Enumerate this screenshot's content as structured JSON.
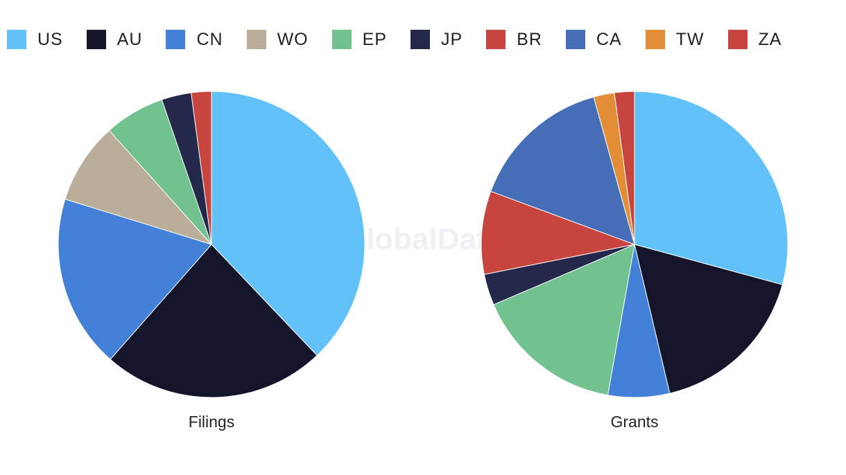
{
  "watermark": "GlobalData",
  "legend": [
    {
      "name": "US",
      "color": "#62C1F9"
    },
    {
      "name": "AU",
      "color": "#14152A"
    },
    {
      "name": "CN",
      "color": "#4380D8"
    },
    {
      "name": "WO",
      "color": "#BAAD9A"
    },
    {
      "name": "EP",
      "color": "#72C290"
    },
    {
      "name": "JP",
      "color": "#24284A"
    },
    {
      "name": "BR",
      "color": "#C8443F"
    },
    {
      "name": "CA",
      "color": "#456EB6"
    },
    {
      "name": "TW",
      "color": "#E38E36"
    },
    {
      "name": "ZA",
      "color": "#C8443F"
    }
  ],
  "chart_data": [
    {
      "type": "pie",
      "title": "Filings",
      "slices": [
        {
          "label": "US",
          "value": 37.5
        },
        {
          "label": "AU",
          "value": 23.3
        },
        {
          "label": "CN",
          "value": 18.1
        },
        {
          "label": "WO",
          "value": 8.5
        },
        {
          "label": "EP",
          "value": 6.3
        },
        {
          "label": "JP",
          "value": 3.1
        },
        {
          "label": "ZA",
          "value": 2.1
        }
      ]
    },
    {
      "type": "pie",
      "title": "Grants",
      "slices": [
        {
          "label": "US",
          "value": 29.3
        },
        {
          "label": "AU",
          "value": 17.1
        },
        {
          "label": "CN",
          "value": 6.5
        },
        {
          "label": "EP",
          "value": 15.8
        },
        {
          "label": "JP",
          "value": 3.3
        },
        {
          "label": "BR",
          "value": 8.8
        },
        {
          "label": "CA",
          "value": 15.1
        },
        {
          "label": "TW",
          "value": 2.2
        },
        {
          "label": "ZA",
          "value": 2.1
        }
      ]
    }
  ]
}
